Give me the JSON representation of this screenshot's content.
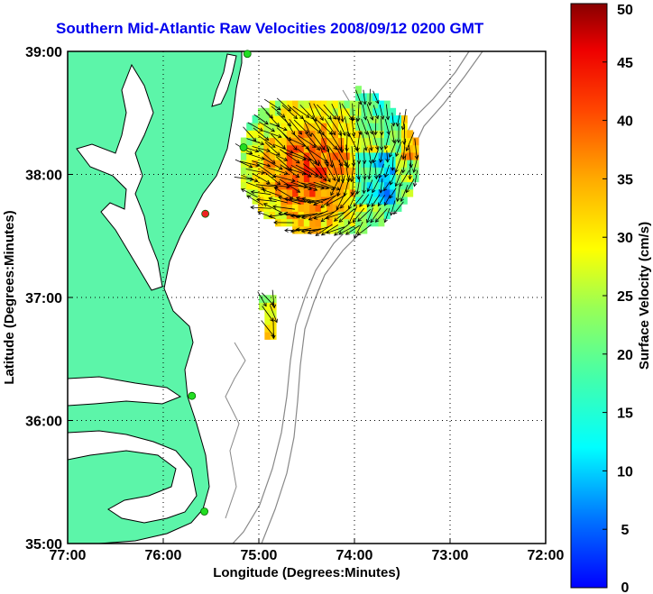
{
  "title": "Southern Mid-Atlantic Raw Velocities 2008/09/12 0200 GMT",
  "x_axis": {
    "label": "Longitude (Degrees:Minutes)",
    "ticks": [
      {
        "value": -77,
        "label": "77:00"
      },
      {
        "value": -76,
        "label": "76:00"
      },
      {
        "value": -75,
        "label": "75:00"
      },
      {
        "value": -74,
        "label": "74:00"
      },
      {
        "value": -73,
        "label": "73:00"
      },
      {
        "value": -72,
        "label": "72:00"
      }
    ],
    "range": [
      -77,
      -72
    ]
  },
  "y_axis": {
    "label": "Latitude (Degrees:Minutes)",
    "ticks": [
      {
        "value": 35,
        "label": "35:00"
      },
      {
        "value": 36,
        "label": "36:00"
      },
      {
        "value": 37,
        "label": "37:00"
      },
      {
        "value": 38,
        "label": "38:00"
      },
      {
        "value": 39,
        "label": "39:00"
      }
    ],
    "range": [
      35,
      39
    ]
  },
  "colorbar": {
    "label": "Surface Velocity (cm/s)",
    "range": [
      0,
      50
    ],
    "ticks": [
      "0",
      "5",
      "10",
      "15",
      "20",
      "25",
      "30",
      "35",
      "40",
      "45",
      "50"
    ]
  },
  "colors": {
    "land": "#5cf5a9",
    "coastline": "#000000",
    "bathymetry": "#888888",
    "station": "#22dd22",
    "station_active": "#ee2222",
    "grid": "#000000"
  },
  "stations": [
    {
      "lon": -75.12,
      "lat": 38.98,
      "state": "normal"
    },
    {
      "lon": -75.16,
      "lat": 38.22,
      "state": "normal"
    },
    {
      "lon": -75.56,
      "lat": 37.68,
      "state": "active"
    },
    {
      "lon": -75.7,
      "lat": 36.2,
      "state": "normal"
    },
    {
      "lon": -75.57,
      "lat": 35.26,
      "state": "normal"
    }
  ],
  "velocity_field": {
    "main_region": {
      "lon_range": [
        -75.25,
        -73.3
      ],
      "lat_range": [
        37.4,
        38.75
      ]
    },
    "southern_patch": {
      "lon_range": [
        -75.0,
        -74.85
      ],
      "lat_range": [
        36.6,
        36.97
      ]
    },
    "typical_speeds_cm_s": [
      20,
      35
    ]
  }
}
